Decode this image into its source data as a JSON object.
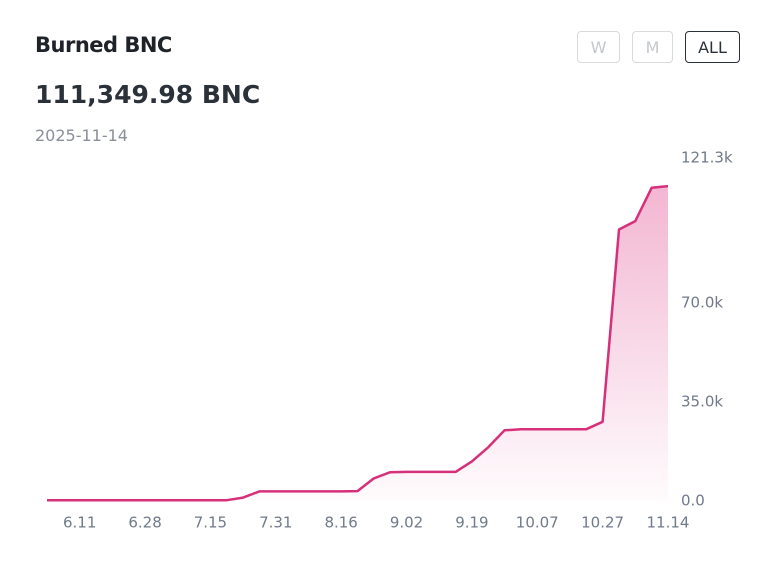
{
  "header": {
    "title": "Burned BNC",
    "value": "111,349.98 BNC",
    "date": "2025-11-14"
  },
  "range_buttons": [
    "W",
    "M",
    "ALL"
  ],
  "active_range": "ALL",
  "chart_data": {
    "type": "line",
    "x": [
      null,
      null,
      "6.11",
      null,
      null,
      null,
      "6.28",
      null,
      null,
      null,
      "7.15",
      null,
      null,
      null,
      "7.31",
      null,
      null,
      null,
      "8.16",
      null,
      null,
      null,
      "9.02",
      null,
      null,
      null,
      "9.19",
      null,
      null,
      null,
      "10.07",
      null,
      null,
      null,
      "10.27",
      null,
      null,
      null,
      "11.14"
    ],
    "values": [
      300,
      300,
      300,
      300,
      300,
      300,
      300,
      300,
      300,
      300,
      300,
      300,
      1200,
      3400,
      3400,
      3400,
      3400,
      3400,
      3400,
      3500,
      8000,
      10200,
      10300,
      10300,
      10300,
      10300,
      14000,
      19000,
      25000,
      25400,
      25400,
      25400,
      25400,
      25400,
      28000,
      96000,
      99000,
      110800,
      111350
    ],
    "color": "#d6307a",
    "area": true,
    "ylim": [
      0,
      121300
    ],
    "yticks": [
      {
        "value": 121300,
        "label": "121.3k"
      },
      {
        "value": 70000,
        "label": "70.0k"
      },
      {
        "value": 35000,
        "label": "35.0k"
      },
      {
        "value": 0,
        "label": "0.0"
      }
    ]
  }
}
